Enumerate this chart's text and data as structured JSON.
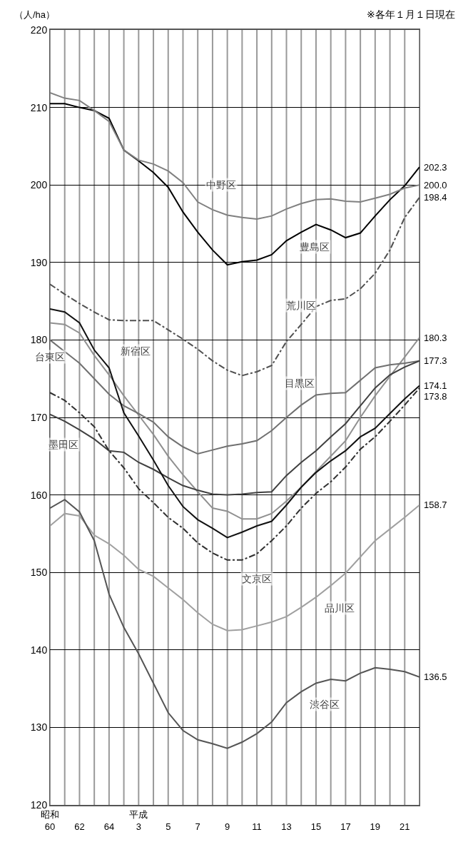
{
  "chart_data": {
    "type": "line",
    "ylabel": "（人/ha）",
    "categories": [
      "昭和\n60",
      null,
      "62",
      null,
      "64",
      null,
      "平成\n3",
      null,
      "5",
      null,
      "7",
      null,
      "9",
      null,
      "11",
      null,
      "13",
      null,
      "15",
      null,
      "17",
      null,
      "19",
      null,
      "21",
      null
    ],
    "ylim": [
      120,
      220
    ],
    "yticks": [
      120,
      130,
      140,
      150,
      160,
      170,
      180,
      190,
      200,
      210,
      220
    ],
    "grid": true,
    "series": [
      {
        "color": "#000000",
        "values": [
          210.5,
          210.5,
          210.0,
          209.6,
          208.6,
          204.5,
          203.1,
          201.6,
          199.7,
          196.5,
          193.9,
          191.6,
          189.7,
          190.1,
          190.3,
          191.0,
          192.8,
          193.9,
          194.9,
          194.2,
          193.2,
          193.8,
          196.0,
          198.1,
          199.9,
          202.3
        ],
        "value_labels": [
          null,
          null,
          null,
          null,
          null,
          null,
          null,
          null,
          null,
          null,
          null,
          null,
          null,
          null,
          null,
          null,
          null,
          null,
          null,
          null,
          null,
          null,
          null,
          null,
          null,
          "202.3"
        ]
      },
      {
        "color": "#808080",
        "values": [
          211.9,
          211.2,
          210.9,
          209.6,
          208.2,
          204.5,
          203.2,
          202.7,
          201.8,
          200.3,
          197.8,
          196.8,
          196.1,
          195.8,
          195.6,
          196.0,
          196.9,
          197.6,
          198.1,
          198.2,
          197.9,
          197.8,
          198.3,
          198.8,
          199.6,
          200.0
        ],
        "value_labels": [
          null,
          null,
          null,
          null,
          null,
          null,
          null,
          null,
          null,
          null,
          null,
          null,
          null,
          null,
          null,
          null,
          null,
          null,
          null,
          null,
          null,
          null,
          null,
          null,
          null,
          "200.0"
        ]
      },
      {
        "color": "#505050",
        "line_style": "dashed",
        "values": [
          187.2,
          185.9,
          184.7,
          183.6,
          182.6,
          182.5,
          182.5,
          182.5,
          181.3,
          180.1,
          178.8,
          177.3,
          176.1,
          175.4,
          175.9,
          176.7,
          179.8,
          182.0,
          184.3,
          185.1,
          185.3,
          186.6,
          188.6,
          191.6,
          195.8,
          198.4
        ],
        "value_labels": [
          null,
          null,
          null,
          null,
          null,
          null,
          null,
          null,
          null,
          null,
          null,
          null,
          null,
          null,
          null,
          null,
          null,
          null,
          null,
          null,
          null,
          null,
          null,
          null,
          null,
          "198.4"
        ]
      },
      {
        "color": "#909090",
        "values": [
          182.2,
          182.0,
          180.9,
          178.0,
          175.5,
          172.8,
          170.3,
          167.8,
          165.0,
          162.6,
          160.4,
          158.3,
          157.9,
          156.9,
          156.9,
          157.6,
          159.2,
          161.0,
          163.0,
          165.0,
          167.0,
          170.0,
          172.8,
          175.3,
          177.8,
          180.3
        ],
        "value_labels": [
          null,
          null,
          null,
          null,
          null,
          null,
          null,
          null,
          null,
          null,
          null,
          null,
          null,
          null,
          null,
          null,
          null,
          null,
          null,
          null,
          null,
          null,
          null,
          null,
          null,
          "180.3"
        ]
      },
      {
        "color": "#707070",
        "values": [
          180.0,
          178.5,
          177.0,
          175.0,
          173.0,
          171.5,
          170.5,
          169.4,
          167.5,
          166.2,
          165.3,
          165.8,
          166.3,
          166.6,
          167.0,
          168.3,
          170.0,
          171.6,
          172.9,
          173.1,
          173.2,
          174.8,
          176.4,
          176.8,
          177.0,
          177.3
        ],
        "value_labels": [
          null,
          null,
          null,
          null,
          null,
          null,
          null,
          null,
          null,
          null,
          null,
          null,
          null,
          null,
          null,
          null,
          null,
          null,
          null,
          null,
          null,
          null,
          null,
          null,
          null,
          "177.3"
        ]
      },
      {
        "color": "#404040",
        "values": [
          170.4,
          169.5,
          168.4,
          167.2,
          165.7,
          165.5,
          164.2,
          163.3,
          162.2,
          161.2,
          160.6,
          160.1,
          160.0,
          160.1,
          160.3,
          160.4,
          162.5,
          164.2,
          165.7,
          167.5,
          169.2,
          171.5,
          173.8,
          175.5,
          176.5,
          177.3
        ]
      },
      {
        "color": "#111111",
        "values": [
          184.0,
          183.6,
          182.2,
          178.7,
          176.4,
          170.6,
          167.6,
          164.5,
          161.2,
          158.5,
          156.8,
          155.7,
          154.5,
          155.2,
          156.0,
          156.6,
          158.7,
          161.0,
          162.9,
          164.4,
          165.7,
          167.5,
          168.6,
          170.5,
          172.4,
          174.1
        ],
        "value_labels": [
          null,
          null,
          null,
          null,
          null,
          null,
          null,
          null,
          null,
          null,
          null,
          null,
          null,
          null,
          null,
          null,
          null,
          null,
          null,
          null,
          null,
          null,
          null,
          null,
          null,
          "174.1"
        ]
      },
      {
        "color": "#303030",
        "line_style": "dashed",
        "values": [
          173.2,
          172.2,
          170.6,
          168.8,
          165.7,
          163.5,
          160.8,
          159.0,
          157.1,
          155.7,
          153.8,
          152.5,
          151.6,
          151.6,
          152.4,
          154.1,
          156.0,
          158.3,
          160.2,
          161.7,
          163.6,
          165.9,
          167.5,
          169.5,
          171.6,
          173.8
        ],
        "value_labels": [
          null,
          null,
          null,
          null,
          null,
          null,
          null,
          null,
          null,
          null,
          null,
          null,
          null,
          null,
          null,
          null,
          null,
          null,
          null,
          null,
          null,
          null,
          null,
          null,
          null,
          "173.8"
        ]
      },
      {
        "color": "#a0a0a0",
        "values": [
          156.0,
          157.6,
          157.3,
          154.8,
          153.7,
          152.2,
          150.4,
          149.5,
          148.0,
          146.5,
          144.8,
          143.3,
          142.5,
          142.6,
          143.1,
          143.6,
          144.3,
          145.5,
          146.8,
          148.3,
          149.9,
          152.0,
          154.1,
          155.6,
          157.1,
          158.7
        ],
        "value_labels": [
          null,
          null,
          null,
          null,
          null,
          null,
          null,
          null,
          null,
          null,
          null,
          null,
          null,
          null,
          null,
          null,
          null,
          null,
          null,
          null,
          null,
          null,
          null,
          null,
          null,
          "158.7"
        ]
      },
      {
        "color": "#555555",
        "values": [
          158.3,
          159.4,
          157.8,
          154.1,
          147.2,
          142.9,
          139.5,
          135.7,
          131.9,
          129.6,
          128.4,
          127.9,
          127.3,
          128.1,
          129.2,
          130.7,
          133.2,
          134.6,
          135.7,
          136.2,
          136.0,
          137.0,
          137.7,
          137.5,
          137.2,
          136.5
        ],
        "value_labels": [
          null,
          null,
          null,
          null,
          null,
          null,
          null,
          null,
          null,
          null,
          null,
          null,
          null,
          null,
          null,
          null,
          null,
          null,
          null,
          null,
          null,
          null,
          null,
          null,
          null,
          "136.5"
        ]
      }
    ],
    "annotations": [
      "※各年１月１日現在",
      "中野区",
      "豊島区",
      "荒川区",
      "台東区",
      "新宿区",
      "目黒区",
      "墨田区",
      "文京区",
      "品川区",
      "渋谷区"
    ]
  }
}
